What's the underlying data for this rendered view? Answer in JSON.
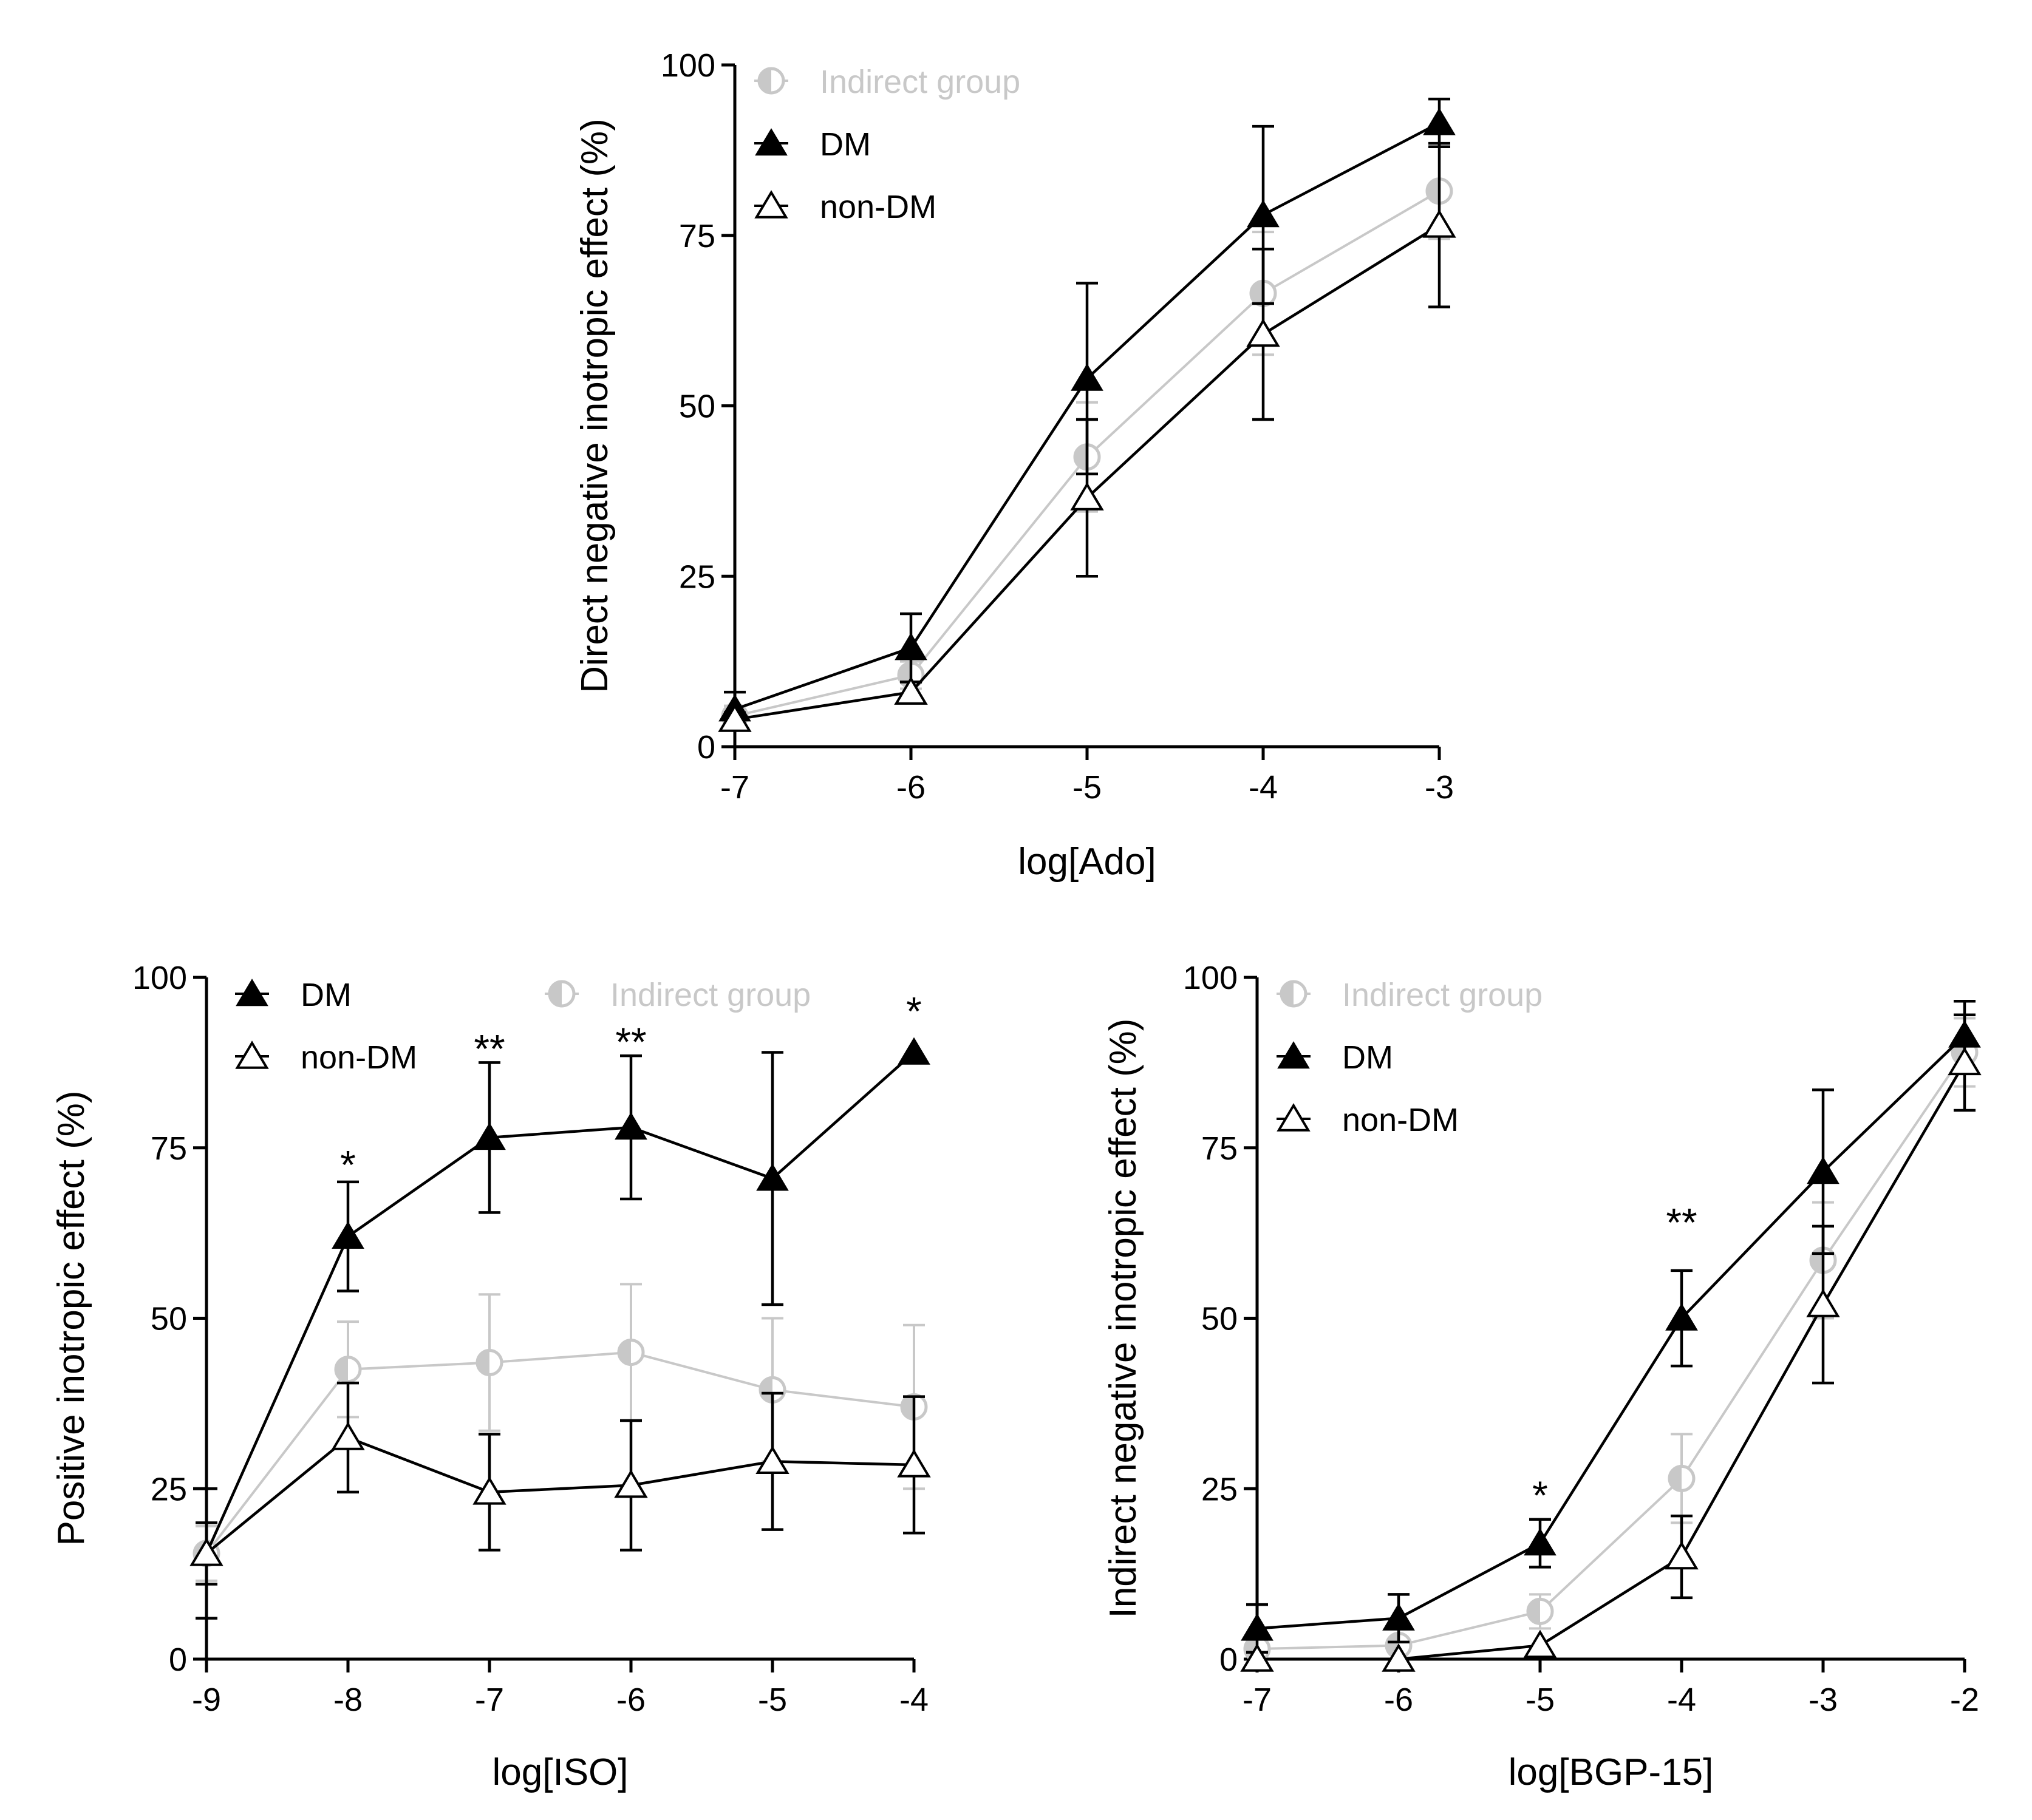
{
  "colors": {
    "dm": "#000000",
    "non_dm": "#000000",
    "indirect": "#c8c8c8"
  },
  "chart_data": [
    {
      "type": "line",
      "xlabel": "log[Ado]",
      "ylabel": "Direct negative inotropic effect (%)",
      "x": [
        -7,
        -6,
        -5,
        -4,
        -3
      ],
      "xlim": [
        -7,
        -3
      ],
      "ylim": [
        0,
        100
      ],
      "yticks": [
        0,
        25,
        50,
        75,
        100
      ],
      "legend": {
        "position": "top-left",
        "entries": [
          "Indirect group",
          "DM",
          "non-DM"
        ]
      },
      "series": [
        {
          "key": "indirect",
          "name": "Indirect group",
          "values": [
            4.5,
            10.5,
            42.5,
            66.5,
            81.5
          ],
          "err": [
            1.5,
            2,
            8,
            9,
            7
          ]
        },
        {
          "key": "dm",
          "name": "DM",
          "values": [
            5.5,
            14.5,
            54,
            78,
            91.5
          ],
          "err": [
            2.5,
            5,
            14,
            13,
            3.5
          ]
        },
        {
          "key": "non_dm",
          "name": "non-DM",
          "values": [
            4,
            8,
            36.5,
            60.5,
            76.5
          ],
          "err": [
            1,
            1.5,
            11.5,
            12.5,
            12
          ]
        }
      ],
      "annotations": []
    },
    {
      "type": "line",
      "xlabel": "log[ISO]",
      "ylabel": "Positive inotropic effect (%)",
      "x": [
        -9,
        -8,
        -7,
        -6,
        -5,
        -4
      ],
      "xlim": [
        -9,
        -4
      ],
      "ylim": [
        0,
        100
      ],
      "yticks": [
        0,
        25,
        50,
        75,
        100
      ],
      "legend": {
        "position": "top",
        "entries": [
          "DM",
          "non-DM",
          "Indirect group"
        ]
      },
      "series": [
        {
          "key": "indirect",
          "name": "Indirect group",
          "values": [
            15.5,
            42.5,
            43.5,
            45,
            39.5,
            37
          ],
          "err": [
            4,
            7,
            10,
            10,
            10.5,
            12
          ]
        },
        {
          "key": "dm",
          "name": "DM",
          "values": [
            15.5,
            62,
            76.5,
            78,
            70.5,
            89
          ],
          "err": [
            4.5,
            8,
            11,
            10.5,
            18.5,
            0
          ]
        },
        {
          "key": "non_dm",
          "name": "non-DM",
          "values": [
            15.5,
            32.5,
            24.5,
            25.5,
            29,
            28.5
          ],
          "err": [
            9.5,
            8,
            8.5,
            9.5,
            10,
            10
          ]
        }
      ],
      "annotations": [
        {
          "x": -8,
          "y": 70.5,
          "text": "*"
        },
        {
          "x": -7,
          "y": 87.5,
          "text": "**"
        },
        {
          "x": -6,
          "y": 88.5,
          "text": "**"
        },
        {
          "x": -4,
          "y": 93,
          "text": "*"
        }
      ]
    },
    {
      "type": "line",
      "xlabel": "log[BGP-15]",
      "ylabel": "Indirect negative inotropic effect (%)",
      "x": [
        -7,
        -6,
        -5,
        -4,
        -3,
        -2
      ],
      "xlim": [
        -7,
        -2
      ],
      "ylim": [
        0,
        100
      ],
      "yticks": [
        0,
        25,
        50,
        75,
        100
      ],
      "legend": {
        "position": "top-left",
        "entries": [
          "Indirect group",
          "DM",
          "non-DM"
        ]
      },
      "series": [
        {
          "key": "indirect",
          "name": "Indirect group",
          "values": [
            1.5,
            2,
            7,
            26.5,
            58.5,
            89
          ],
          "err": [
            0,
            0,
            2.5,
            6.5,
            8.5,
            5
          ]
        },
        {
          "key": "dm",
          "name": "DM",
          "values": [
            4.5,
            6,
            17,
            50,
            71.5,
            91.5
          ],
          "err": [
            3.5,
            3.5,
            3.5,
            7,
            12,
            5
          ]
        },
        {
          "key": "non_dm",
          "name": "non-DM",
          "values": [
            0,
            0,
            2,
            15,
            52,
            87.5
          ],
          "err": [
            0,
            0,
            0,
            6,
            11.5,
            7
          ]
        }
      ],
      "annotations": [
        {
          "x": -5,
          "y": 22,
          "text": "*"
        },
        {
          "x": -4,
          "y": 62,
          "text": "**"
        }
      ]
    }
  ]
}
